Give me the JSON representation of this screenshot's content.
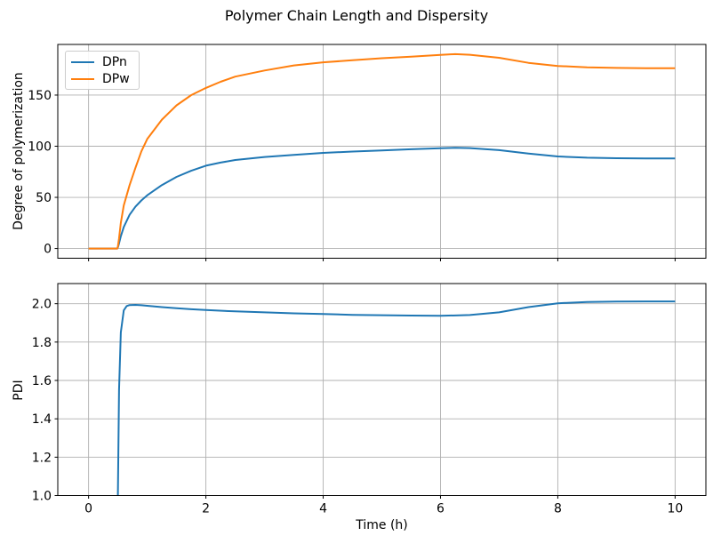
{
  "figure": {
    "title": "Polymer Chain Length and Dispersity",
    "background": "#ffffff",
    "grid_color": "#b0b0b0",
    "axis_color": "#000000",
    "text_color": "#000000"
  },
  "chart_data": [
    {
      "type": "line",
      "ylabel": "Degree of polymerization",
      "xlabel": "",
      "xlim": [
        -0.525,
        10.525
      ],
      "ylim": [
        -9.5,
        199.5
      ],
      "xticks": [
        0,
        2,
        4,
        6,
        8,
        10
      ],
      "xtick_labels": [
        "0",
        "2",
        "4",
        "6",
        "8",
        "10"
      ],
      "yticks": [
        0,
        50,
        100,
        150
      ],
      "ytick_labels": [
        "0",
        "50",
        "100",
        "150"
      ],
      "grid": true,
      "legend_position": "upper left",
      "x": [
        0,
        0.25,
        0.49,
        0.5,
        0.52,
        0.55,
        0.6,
        0.7,
        0.8,
        0.9,
        1.0,
        1.25,
        1.5,
        1.75,
        2.0,
        2.25,
        2.5,
        3.0,
        3.5,
        4.0,
        4.5,
        5.0,
        5.5,
        6.0,
        6.25,
        6.5,
        7.0,
        7.5,
        8.0,
        8.5,
        9.0,
        9.5,
        10.0
      ],
      "series": [
        {
          "name": "DPn",
          "color": "#1f77b4",
          "values": [
            0,
            0,
            0,
            1,
            5,
            12,
            21,
            33,
            41,
            47,
            52,
            62,
            70,
            76,
            81,
            84,
            86.5,
            89.5,
            91.5,
            93.5,
            94.8,
            95.8,
            97,
            98,
            98.4,
            98.2,
            96.2,
            92.8,
            90,
            88.8,
            88.3,
            88.1,
            88
          ]
        },
        {
          "name": "DPw",
          "color": "#ff7f0e",
          "values": [
            0,
            0,
            0,
            2,
            10,
            25,
            42,
            62,
            79,
            95,
            107,
            126,
            140,
            150,
            157,
            163,
            168,
            174,
            179,
            182,
            184,
            186,
            187.5,
            189.3,
            190,
            189.4,
            186.5,
            181.5,
            178.5,
            177.2,
            176.6,
            176.3,
            176.2
          ]
        }
      ]
    },
    {
      "type": "line",
      "ylabel": "PDI",
      "xlabel": "Time (h)",
      "xlim": [
        -0.525,
        10.525
      ],
      "ylim": [
        1.0,
        2.105
      ],
      "xticks": [
        0,
        2,
        4,
        6,
        8,
        10
      ],
      "xtick_labels": [
        "0",
        "2",
        "4",
        "6",
        "8",
        "10"
      ],
      "yticks": [
        1.0,
        1.2,
        1.4,
        1.6,
        1.8,
        2.0
      ],
      "ytick_labels": [
        "1.0",
        "1.2",
        "1.4",
        "1.6",
        "1.8",
        "2.0"
      ],
      "grid": true,
      "x": [
        0.5,
        0.52,
        0.55,
        0.6,
        0.65,
        0.7,
        0.8,
        0.9,
        1.0,
        1.25,
        1.5,
        1.75,
        2.0,
        2.5,
        3.0,
        3.5,
        4.0,
        4.5,
        5.0,
        5.5,
        6.0,
        6.5,
        7.0,
        7.5,
        8.0,
        8.5,
        9.0,
        9.5,
        10.0
      ],
      "series": [
        {
          "name": "PDI",
          "color": "#1f77b4",
          "values": [
            1.0,
            1.55,
            1.85,
            1.965,
            1.988,
            1.993,
            1.994,
            1.992,
            1.989,
            1.982,
            1.976,
            1.971,
            1.967,
            1.96,
            1.955,
            1.95,
            1.946,
            1.942,
            1.94,
            1.938,
            1.937,
            1.941,
            1.955,
            1.982,
            2.002,
            2.009,
            2.011,
            2.012,
            2.012
          ]
        }
      ]
    }
  ]
}
